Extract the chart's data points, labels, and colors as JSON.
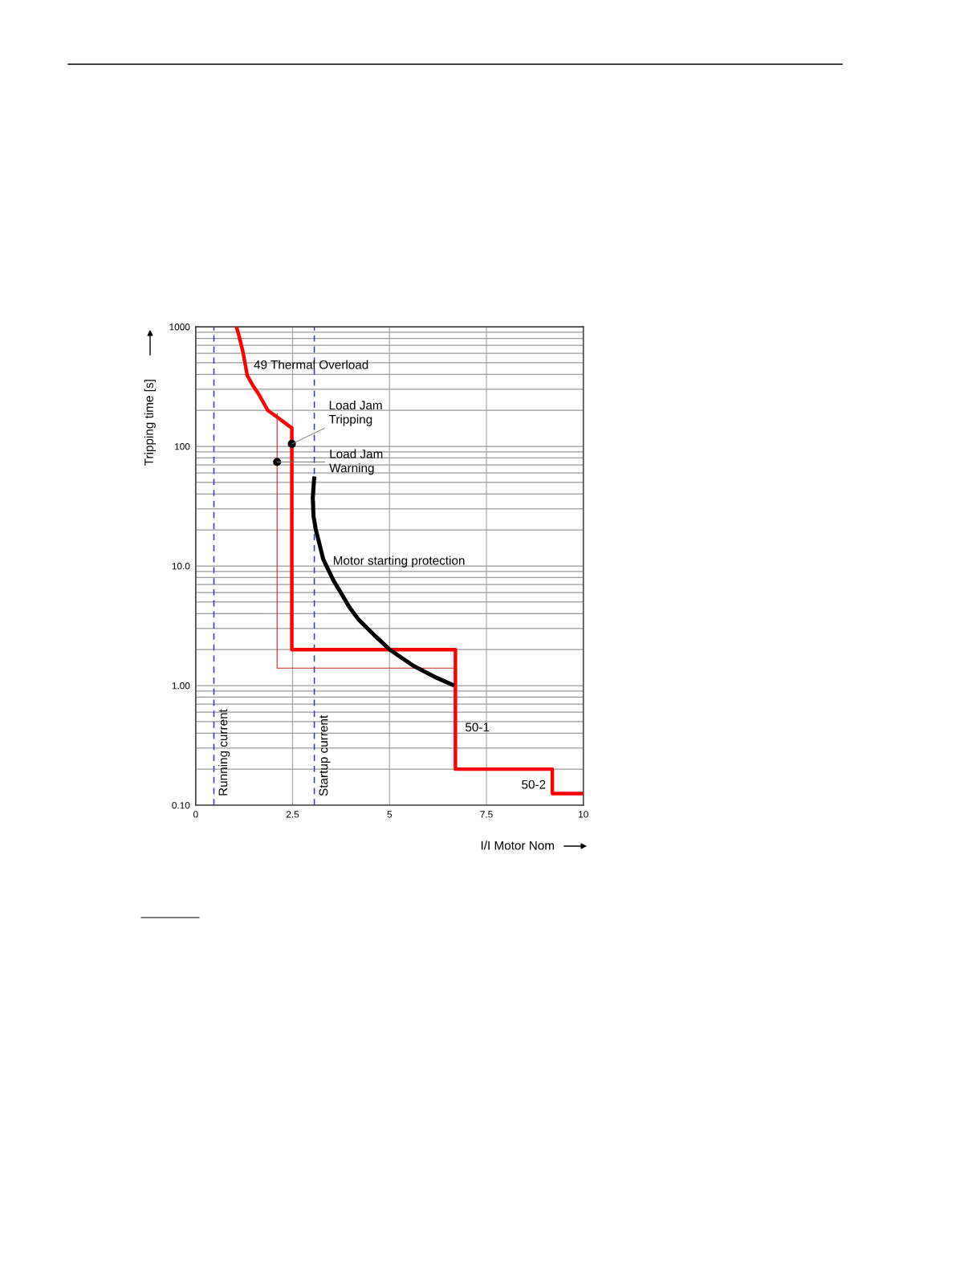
{
  "chart_data": {
    "type": "line",
    "xlabel": "I/I Motor Nom",
    "ylabel": "Tripping time [s]",
    "log": "y",
    "grid": true,
    "legend": false,
    "xlim": [
      0,
      10
    ],
    "xticks": [
      0,
      2.5,
      5,
      7.5,
      10
    ],
    "ylim": [
      0.1,
      1000
    ],
    "yticks": [
      {
        "value": 0.1,
        "label": "0.10"
      },
      {
        "value": 1,
        "label": "1.00"
      },
      {
        "value": 10,
        "label": "10.0"
      },
      100,
      1000
    ],
    "series": [
      {
        "type": "line",
        "color": "#ff0000",
        "x": [
          1.05,
          1.11,
          1.22,
          1.33,
          1.48,
          1.63,
          1.86,
          2.08,
          2.42,
          2.48,
          2.48,
          6.7,
          6.7,
          9.2,
          9.2,
          10
        ],
        "values": [
          1000,
          859,
          614,
          392,
          321,
          272,
          200,
          178,
          147,
          143,
          2,
          2,
          0.2,
          0.2,
          0.125,
          0.125
        ]
      },
      {
        "type": "line",
        "color": "#d42020",
        "x": [
          2.1,
          2.1,
          6.7
        ],
        "values": [
          189,
          1.4,
          1.4
        ]
      },
      {
        "type": "line",
        "color": "#000000",
        "x": [
          3.06,
          3.04,
          3.02,
          3.04,
          3.1,
          3.18,
          3.29,
          3.55,
          3.74,
          3.97,
          4.19,
          4.64,
          5.02,
          5.62,
          6.22,
          6.67
        ],
        "values": [
          56,
          46,
          37,
          26,
          20,
          15.9,
          11.4,
          7.6,
          6.0,
          4.5,
          3.6,
          2.58,
          1.98,
          1.46,
          1.16,
          1.0
        ]
      },
      {
        "type": "scatter",
        "color": "#000000",
        "marker": "circle",
        "x": [
          2.48,
          2.1
        ],
        "values": [
          105,
          74
        ]
      }
    ],
    "ref_lines": [
      {
        "axis": "x",
        "value": 0.47,
        "label": "Running current",
        "color": "#3333cc",
        "line_style": "dashed"
      },
      {
        "axis": "x",
        "value": 3.06,
        "label": "Startup current",
        "color": "#3333cc",
        "line_style": "dashed"
      }
    ],
    "annotations": [
      {
        "text": "49 Thermal Overload",
        "x": 1.33,
        "y": 392
      },
      {
        "text": "Load Jam\nTripping",
        "x": 2.48,
        "y": 105
      },
      {
        "text": "Load Jam\nWarning",
        "x": 2.1,
        "y": 74
      },
      {
        "text": "Motor starting protection",
        "x": 3.29,
        "y": 11.4
      },
      {
        "text": "50-1",
        "x": 6.7,
        "y": 0.44
      },
      {
        "text": "50-2",
        "x": 9.2,
        "y": 0.146
      }
    ]
  }
}
